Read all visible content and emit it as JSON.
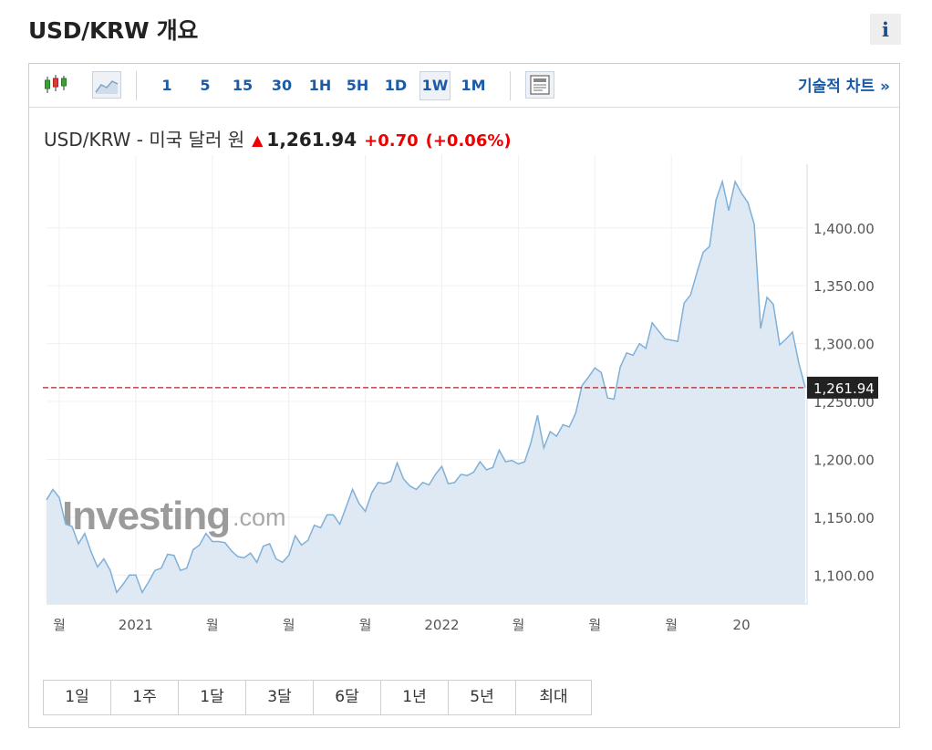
{
  "page": {
    "title": "USD/KRW 개요",
    "info_label": "i"
  },
  "toolbar": {
    "intervals": [
      "1",
      "5",
      "15",
      "30",
      "1H",
      "5H",
      "1D",
      "1W",
      "1M"
    ],
    "selected_interval": "1W",
    "technical_link": "기술적 차트 »"
  },
  "quote": {
    "name": "USD/KRW - 미국 달러 원",
    "direction_icon": "arrow-up-icon",
    "price": "1,261.94",
    "change": "+0.70",
    "change_pct": "(+0.06%)",
    "up_color": "#e60000"
  },
  "watermark": {
    "brand": "Investing",
    "suffix": ".com"
  },
  "ranges": [
    "1일",
    "1주",
    "1달",
    "3달",
    "6달",
    "1년",
    "5년",
    "최대"
  ],
  "chart_data": {
    "type": "area",
    "title": "",
    "xlabel": "",
    "ylabel": "",
    "ylim": [
      1075,
      1455
    ],
    "x_ticks": [
      {
        "label": "월",
        "i": 2
      },
      {
        "label": "2021",
        "i": 14
      },
      {
        "label": "월",
        "i": 26
      },
      {
        "label": "월",
        "i": 38
      },
      {
        "label": "월",
        "i": 50
      },
      {
        "label": "2022",
        "i": 62
      },
      {
        "label": "월",
        "i": 74
      },
      {
        "label": "월",
        "i": 86
      },
      {
        "label": "월",
        "i": 98
      },
      {
        "label": "20",
        "i": 109
      }
    ],
    "y_ticks": [
      1100,
      1150,
      1200,
      1250,
      1300,
      1350,
      1400
    ],
    "y_tick_labels": [
      "1,100.00",
      "1,150.00",
      "1,200.00",
      "1,250.00",
      "1,300.00",
      "1,350.00",
      "1,400.00"
    ],
    "last_value": 1261.94,
    "last_value_label": "1,261.94",
    "line_color": "#7fb0d8",
    "fill_color": "#dfe9f3",
    "reference_line_color": "#b22222",
    "series": [
      {
        "values": [
          1165,
          1174,
          1167,
          1144,
          1142,
          1127,
          1136,
          1120,
          1107,
          1114,
          1104,
          1085,
          1092,
          1100,
          1100,
          1085,
          1094,
          1104,
          1106,
          1118,
          1117,
          1104,
          1106,
          1122,
          1126,
          1136,
          1129,
          1129,
          1128,
          1121,
          1116,
          1115,
          1119,
          1111,
          1125,
          1127,
          1114,
          1111,
          1117,
          1134,
          1126,
          1130,
          1143,
          1141,
          1152,
          1152,
          1144,
          1159,
          1174,
          1162,
          1155,
          1171,
          1180,
          1179,
          1181,
          1197,
          1183,
          1177,
          1174,
          1180,
          1178,
          1187,
          1194,
          1179,
          1180,
          1187,
          1186,
          1189,
          1198,
          1191,
          1193,
          1208,
          1198,
          1199,
          1196,
          1198,
          1215,
          1238,
          1210,
          1224,
          1220,
          1230,
          1228,
          1240,
          1264,
          1271,
          1279,
          1275,
          1253,
          1252,
          1280,
          1292,
          1290,
          1300,
          1296,
          1318,
          1311,
          1304,
          1303,
          1302,
          1335,
          1342,
          1361,
          1379,
          1384,
          1424,
          1440,
          1415,
          1440,
          1430,
          1422,
          1403,
          1313,
          1340,
          1334,
          1299,
          1304,
          1310,
          1283,
          1262
        ]
      }
    ]
  }
}
